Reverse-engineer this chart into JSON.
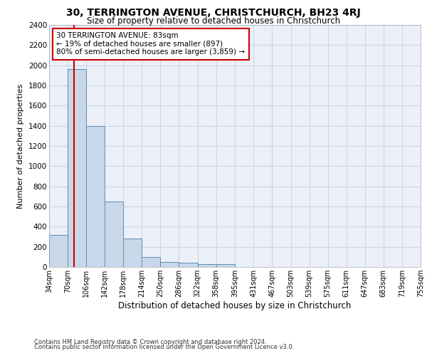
{
  "title1": "30, TERRINGTON AVENUE, CHRISTCHURCH, BH23 4RJ",
  "title2": "Size of property relative to detached houses in Christchurch",
  "xlabel": "Distribution of detached houses by size in Christchurch",
  "ylabel": "Number of detached properties",
  "footnote1": "Contains HM Land Registry data © Crown copyright and database right 2024.",
  "footnote2": "Contains public sector information licensed under the Open Government Licence v3.0.",
  "annotation_line1": "30 TERRINGTON AVENUE: 83sqm",
  "annotation_line2": "← 19% of detached houses are smaller (897)",
  "annotation_line3": "80% of semi-detached houses are larger (3,859) →",
  "bin_edges": [
    34,
    70,
    106,
    142,
    178,
    214,
    250,
    286,
    322,
    358,
    395,
    431,
    467,
    503,
    539,
    575,
    611,
    647,
    683,
    719,
    755
  ],
  "bin_counts": [
    320,
    1960,
    1400,
    650,
    280,
    100,
    50,
    40,
    25,
    25,
    0,
    0,
    0,
    0,
    0,
    0,
    0,
    0,
    0,
    0
  ],
  "bar_color": "#c8d8e8",
  "bar_edge_color": "#5b8db8",
  "property_size": 83,
  "property_line_color": "#cc0000",
  "annotation_box_color": "#cc0000",
  "ylim": [
    0,
    2400
  ],
  "yticks": [
    0,
    200,
    400,
    600,
    800,
    1000,
    1200,
    1400,
    1600,
    1800,
    2000,
    2200,
    2400
  ],
  "grid_color": "#c8d4e4",
  "bg_color": "#eaeff8"
}
